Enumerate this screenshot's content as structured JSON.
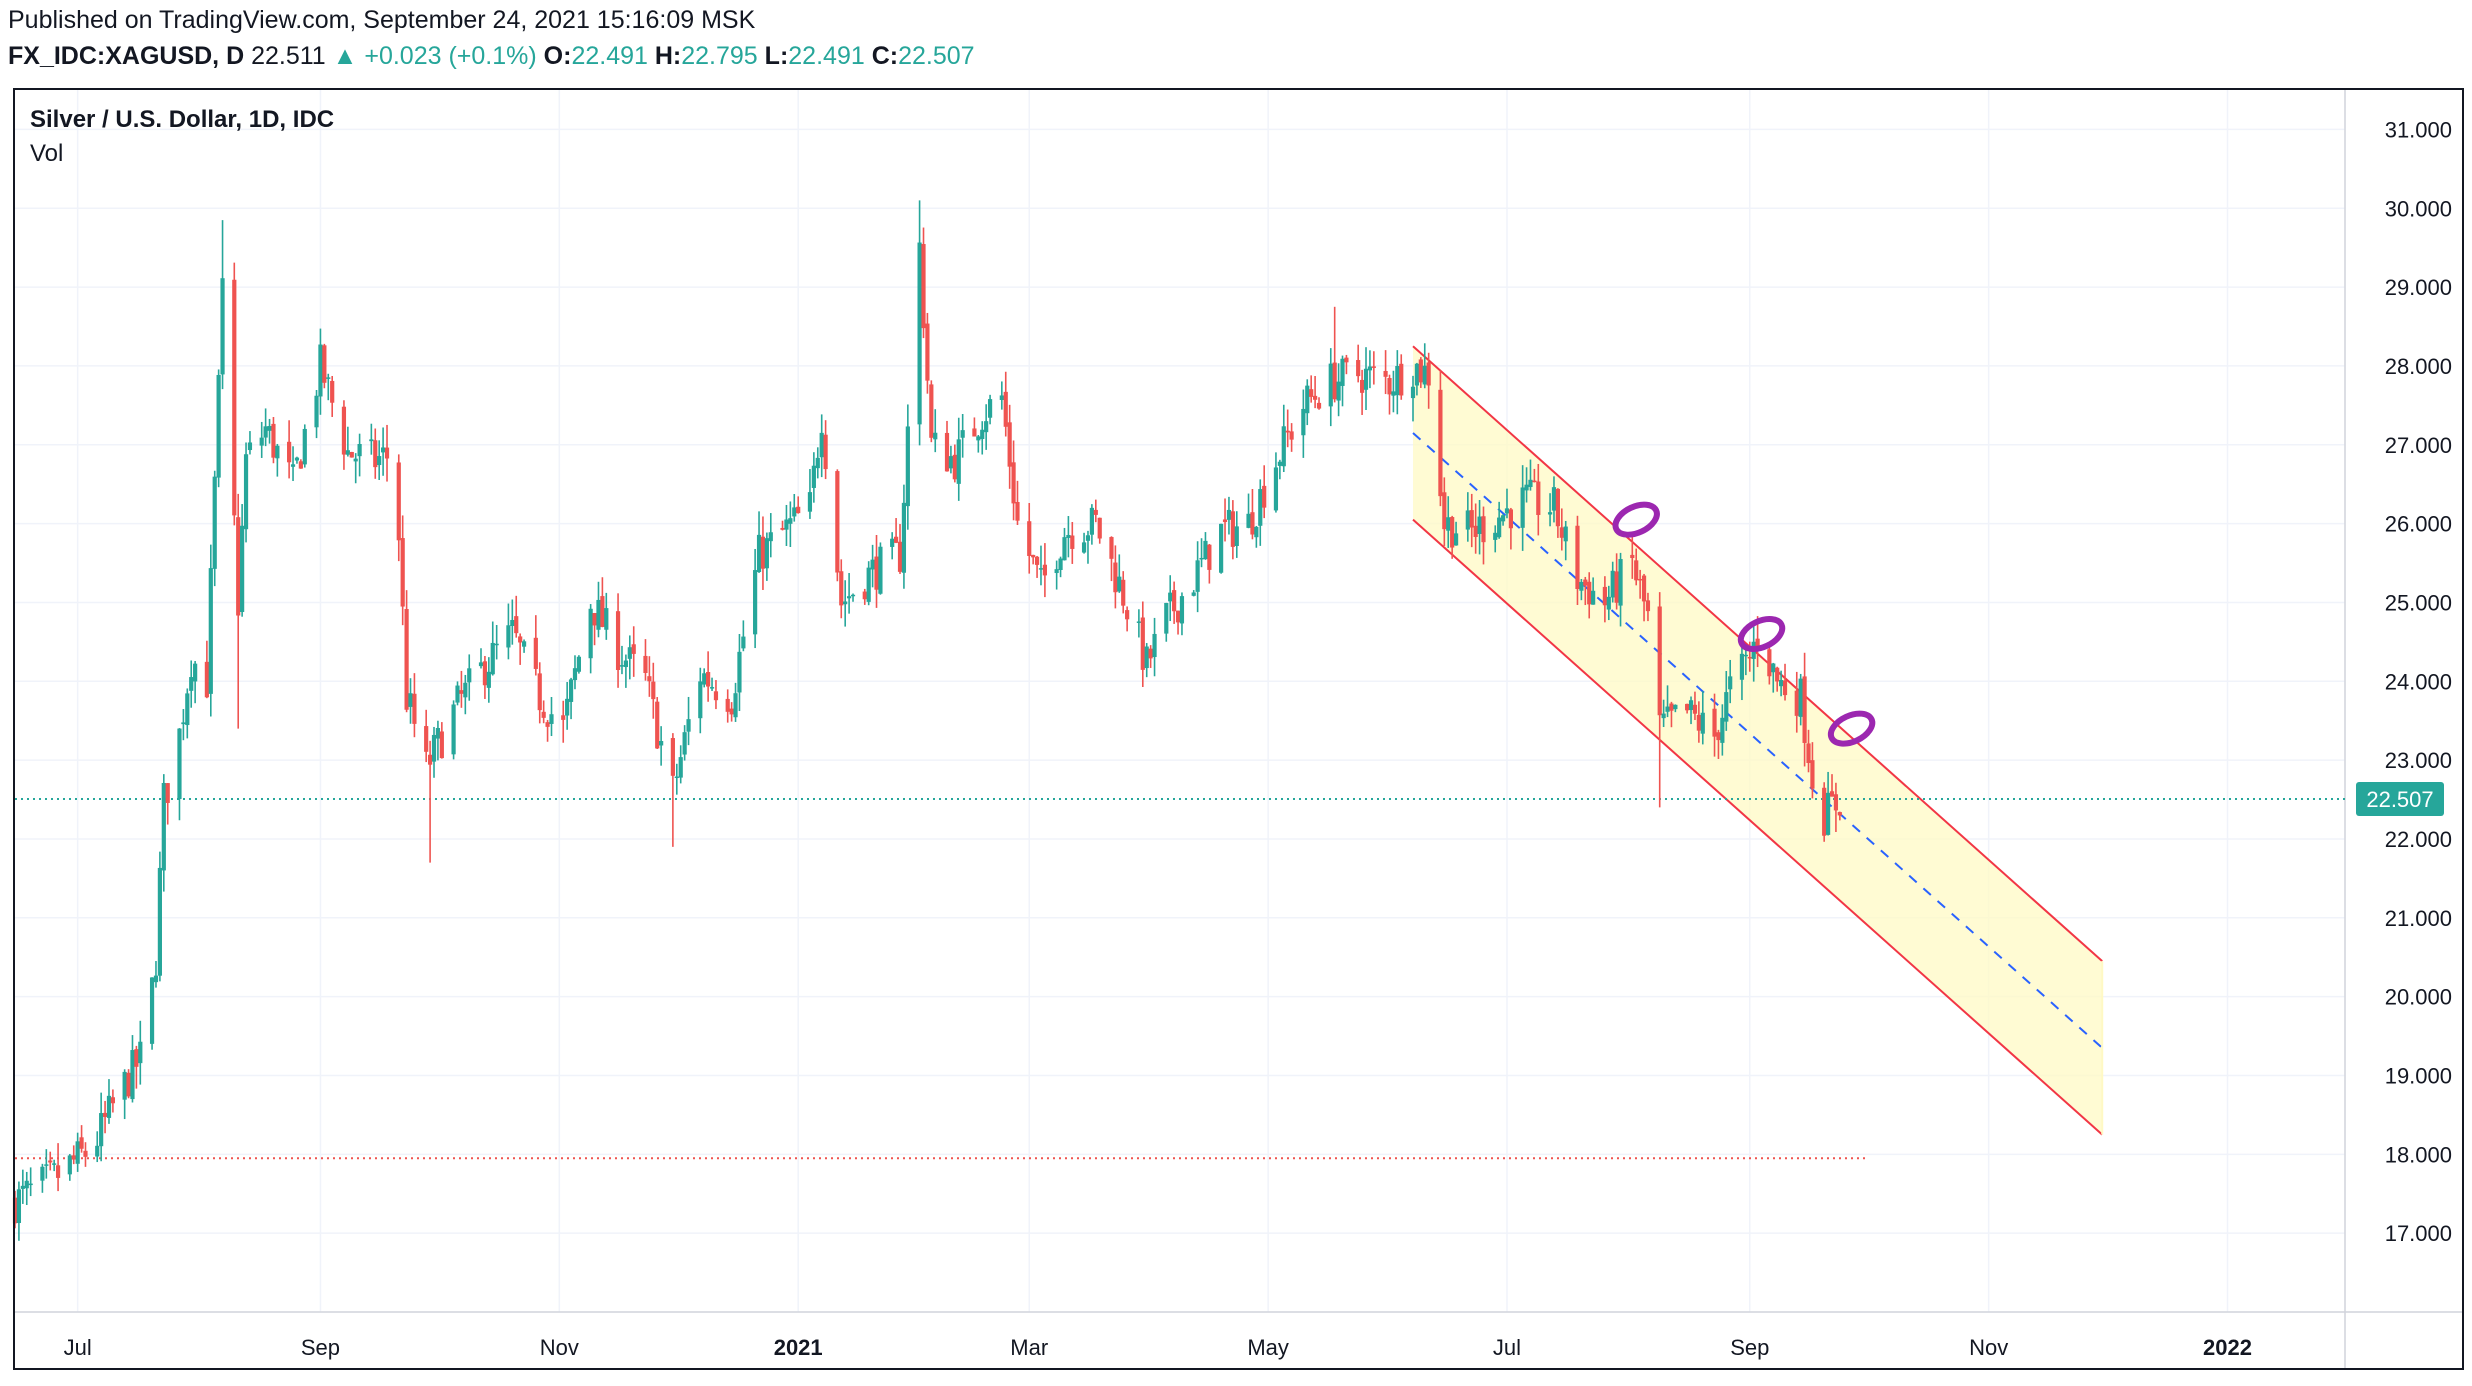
{
  "header": {
    "published": "Published on TradingView.com, September 24, 2021 15:16:09 MSK",
    "symbol": "FX_IDC:XAGUSD, D",
    "price": "22.511",
    "change_arrow": "▲",
    "change": "+0.023 (+0.1%)",
    "o_label": "O:",
    "o": "22.491",
    "h_label": "H:",
    "h": "22.795",
    "l_label": "L:",
    "l": "22.491",
    "c_label": "C:",
    "c": "22.507"
  },
  "legend": {
    "title": "Silver / U.S. Dollar, 1D, IDC",
    "vol": "Vol"
  },
  "colors": {
    "up": "#26a69a",
    "down": "#ef5350",
    "channel_line": "#f23645",
    "channel_fill": "#fff9c4",
    "median": "#2962ff",
    "annotation": "#9c27b0",
    "grid": "#f0f3fa",
    "last_price_line": "#26a69a",
    "support_line": "#ef5350"
  },
  "chart_data": {
    "type": "candlestick",
    "x_range": [
      "2020-06-15",
      "2022-01-31"
    ],
    "ylim": [
      16.0,
      31.5
    ],
    "y_ticks": [
      "17.000",
      "18.000",
      "19.000",
      "20.000",
      "21.000",
      "22.000",
      "23.000",
      "24.000",
      "25.000",
      "26.000",
      "27.000",
      "28.000",
      "29.000",
      "30.000",
      "31.000"
    ],
    "x_ticks": [
      {
        "label": "Jul",
        "date": "2020-07-01",
        "bold": false
      },
      {
        "label": "Sep",
        "date": "2020-09-01",
        "bold": false
      },
      {
        "label": "Nov",
        "date": "2020-11-01",
        "bold": false
      },
      {
        "label": "2021",
        "date": "2021-01-01",
        "bold": true
      },
      {
        "label": "Mar",
        "date": "2021-03-01",
        "bold": false
      },
      {
        "label": "May",
        "date": "2021-05-01",
        "bold": false
      },
      {
        "label": "Jul",
        "date": "2021-07-01",
        "bold": false
      },
      {
        "label": "Sep",
        "date": "2021-09-01",
        "bold": false
      },
      {
        "label": "Nov",
        "date": "2021-11-01",
        "bold": false
      },
      {
        "label": "2022",
        "date": "2022-01-01",
        "bold": true
      }
    ],
    "last_price": "22.507",
    "support_level": 17.95,
    "support_line_range": [
      "2020-06-15",
      "2021-10-01"
    ],
    "price_path": [
      [
        "2020-06-15",
        17.4
      ],
      [
        "2020-06-25",
        17.7
      ],
      [
        "2020-07-05",
        18.1
      ],
      [
        "2020-07-12",
        18.8
      ],
      [
        "2020-07-18",
        19.3
      ],
      [
        "2020-07-21",
        20.5
      ],
      [
        "2020-07-23",
        22.5
      ],
      [
        "2020-07-26",
        23.0
      ],
      [
        "2020-07-30",
        24.3
      ],
      [
        "2020-08-03",
        24.0
      ],
      [
        "2020-08-07",
        28.9
      ],
      [
        "2020-08-11",
        25.0
      ],
      [
        "2020-08-13",
        26.8
      ],
      [
        "2020-08-18",
        27.2
      ],
      [
        "2020-08-25",
        26.5
      ],
      [
        "2020-09-01",
        28.0
      ],
      [
        "2020-09-08",
        26.9
      ],
      [
        "2020-09-15",
        26.8
      ],
      [
        "2020-09-20",
        26.9
      ],
      [
        "2020-09-23",
        23.8
      ],
      [
        "2020-09-28",
        22.9
      ],
      [
        "2020-10-06",
        23.7
      ],
      [
        "2020-10-13",
        24.2
      ],
      [
        "2020-10-20",
        24.6
      ],
      [
        "2020-10-27",
        23.8
      ],
      [
        "2020-11-02",
        23.4
      ],
      [
        "2020-11-09",
        25.0
      ],
      [
        "2020-11-16",
        24.4
      ],
      [
        "2020-11-23",
        24.0
      ],
      [
        "2020-11-30",
        22.6
      ],
      [
        "2020-12-07",
        24.1
      ],
      [
        "2020-12-15",
        23.8
      ],
      [
        "2020-12-22",
        25.6
      ],
      [
        "2021-01-04",
        26.2
      ],
      [
        "2021-01-07",
        27.4
      ],
      [
        "2021-01-12",
        25.0
      ],
      [
        "2021-01-20",
        25.4
      ],
      [
        "2021-01-27",
        25.6
      ],
      [
        "2021-02-01",
        29.5
      ],
      [
        "2021-02-04",
        27.0
      ],
      [
        "2021-02-10",
        26.8
      ],
      [
        "2021-02-17",
        27.4
      ],
      [
        "2021-02-22",
        27.6
      ],
      [
        "2021-02-26",
        26.0
      ],
      [
        "2021-03-04",
        25.2
      ],
      [
        "2021-03-10",
        25.9
      ],
      [
        "2021-03-18",
        26.0
      ],
      [
        "2021-03-25",
        25.1
      ],
      [
        "2021-03-31",
        24.2
      ],
      [
        "2021-04-05",
        24.8
      ],
      [
        "2021-04-12",
        25.3
      ],
      [
        "2021-04-19",
        25.9
      ],
      [
        "2021-04-26",
        26.0
      ],
      [
        "2021-05-03",
        26.8
      ],
      [
        "2021-05-10",
        27.5
      ],
      [
        "2021-05-17",
        27.8
      ],
      [
        "2021-05-24",
        27.9
      ],
      [
        "2021-06-01",
        27.8
      ],
      [
        "2021-06-07",
        28.0
      ],
      [
        "2021-06-11",
        27.9
      ],
      [
        "2021-06-15",
        26.0
      ],
      [
        "2021-06-22",
        25.9
      ],
      [
        "2021-06-29",
        26.1
      ],
      [
        "2021-07-06",
        26.3
      ],
      [
        "2021-07-13",
        26.2
      ],
      [
        "2021-07-19",
        25.3
      ],
      [
        "2021-07-26",
        25.0
      ],
      [
        "2021-08-02",
        25.5
      ],
      [
        "2021-08-06",
        24.8
      ],
      [
        "2021-08-09",
        23.4
      ],
      [
        "2021-08-16",
        23.6
      ],
      [
        "2021-08-23",
        23.3
      ],
      [
        "2021-08-27",
        23.9
      ],
      [
        "2021-09-01",
        24.3
      ],
      [
        "2021-09-03",
        24.6
      ],
      [
        "2021-09-08",
        24.0
      ],
      [
        "2021-09-14",
        23.8
      ],
      [
        "2021-09-17",
        22.8
      ],
      [
        "2021-09-20",
        22.3
      ],
      [
        "2021-09-24",
        22.5
      ]
    ],
    "spikes": [
      {
        "date": "2020-08-07",
        "high": 29.85
      },
      {
        "date": "2020-08-11",
        "low": 23.4
      },
      {
        "date": "2020-09-29",
        "low": 21.7
      },
      {
        "date": "2020-11-30",
        "low": 21.9
      },
      {
        "date": "2021-02-01",
        "high": 30.1
      },
      {
        "date": "2021-05-18",
        "high": 28.75
      },
      {
        "date": "2021-08-09",
        "low": 22.4
      }
    ],
    "channel": {
      "upper": [
        [
          "2021-06-07",
          28.25
        ],
        [
          "2021-11-30",
          20.45
        ]
      ],
      "lower": [
        [
          "2021-06-07",
          26.05
        ],
        [
          "2021-11-30",
          18.25
        ]
      ],
      "median": [
        [
          "2021-06-07",
          27.15
        ],
        [
          "2021-11-30",
          19.35
        ]
      ]
    },
    "annotations": [
      {
        "date": "2021-08-03",
        "price": 26.05
      },
      {
        "date": "2021-09-04",
        "price": 24.6
      },
      {
        "date": "2021-09-27",
        "price": 23.4
      }
    ]
  }
}
